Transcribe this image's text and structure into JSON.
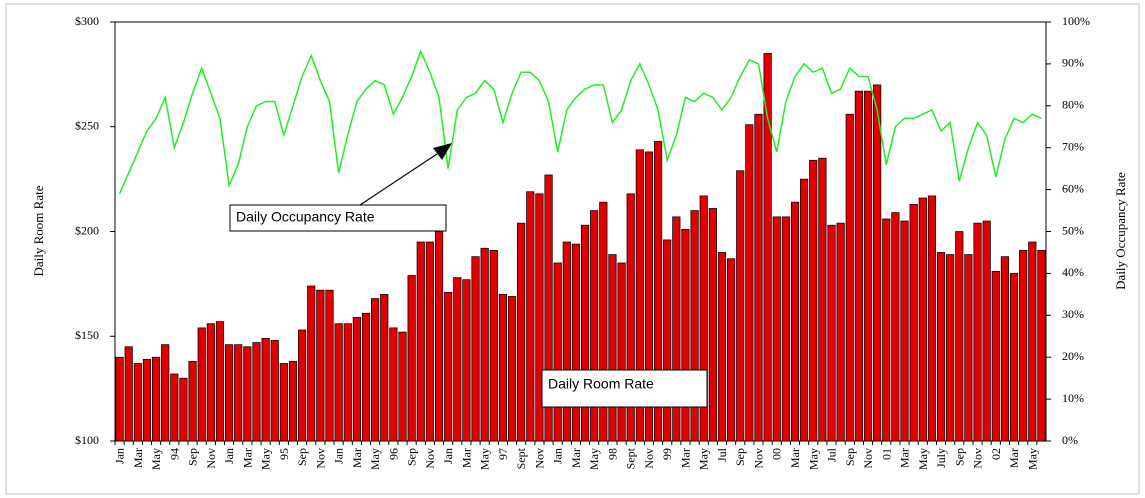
{
  "chart_data": {
    "type": "bar",
    "categories": [
      "Jan",
      null,
      "Mar",
      null,
      "May",
      null,
      "94",
      null,
      "Sep",
      null,
      "Nov",
      null,
      "Jan",
      null,
      "Mar",
      null,
      "May",
      null,
      "95",
      null,
      "Sep",
      null,
      "Nov",
      null,
      "Jan",
      null,
      "Mar",
      null,
      "May",
      null,
      "96",
      null,
      "Sep",
      null,
      "Nov",
      null,
      "Jan",
      null,
      "Mar",
      null,
      "May",
      null,
      "97",
      null,
      "Sept",
      null,
      "Nov",
      null,
      "Jan",
      null,
      "Mar",
      null,
      "May",
      null,
      "98",
      null,
      "Sept",
      null,
      "Nov",
      null,
      "99",
      null,
      "Mar",
      null,
      "May",
      null,
      "Jul",
      null,
      "Sep",
      null,
      "Nov",
      null,
      "00",
      null,
      "Mar",
      null,
      "May",
      null,
      "Jul",
      null,
      "Sep",
      null,
      "Nov",
      null,
      "01",
      null,
      "Mar",
      null,
      "May",
      null,
      "July",
      null,
      "Sep",
      null,
      "Nov",
      null,
      "02",
      null,
      "Mar",
      null,
      "May",
      null
    ],
    "series": [
      {
        "name": "Daily Room Rate",
        "type": "bar",
        "color": "#e00000",
        "values": [
          140,
          145,
          137,
          139,
          140,
          146,
          132,
          130,
          138,
          154,
          156,
          157,
          146,
          146,
          145,
          147,
          149,
          148,
          137,
          138,
          153,
          174,
          172,
          172,
          156,
          156,
          159,
          161,
          168,
          170,
          154,
          152,
          179,
          195,
          195,
          200,
          171,
          178,
          177,
          188,
          192,
          191,
          170,
          169,
          204,
          219,
          218,
          227,
          185,
          195,
          194,
          203,
          210,
          214,
          189,
          185,
          218,
          239,
          238,
          243,
          196,
          207,
          201,
          210,
          217,
          211,
          190,
          187,
          229,
          251,
          256,
          285,
          207,
          207,
          214,
          225,
          234,
          235,
          203,
          204,
          256,
          267,
          267,
          270,
          206,
          209,
          205,
          213,
          216,
          217,
          190,
          189,
          200,
          189,
          204,
          205,
          181,
          188,
          180,
          191,
          195,
          191
        ]
      },
      {
        "name": "Daily Occupancy Rate",
        "type": "line",
        "color": "#22ee22",
        "axis": "y2",
        "values": [
          59,
          64,
          69,
          74,
          77,
          82,
          70,
          76,
          83,
          89,
          83,
          77,
          61,
          66,
          75,
          80,
          81,
          81,
          73,
          80,
          87,
          92,
          86,
          81,
          64,
          73,
          81,
          84,
          86,
          85,
          78,
          82,
          87,
          93,
          88,
          82,
          65,
          79,
          82,
          83,
          86,
          84,
          76,
          83,
          88,
          88,
          86,
          81,
          69,
          79,
          82,
          84,
          85,
          85,
          76,
          79,
          86,
          90,
          85,
          79,
          67,
          73,
          82,
          81,
          83,
          82,
          79,
          82,
          87,
          91,
          90,
          77,
          69,
          81,
          87,
          90,
          88,
          89,
          83,
          84,
          89,
          87,
          87,
          79,
          66,
          75,
          77,
          77,
          78,
          79,
          74,
          76,
          62,
          70,
          76,
          73,
          63,
          72,
          77,
          76,
          78,
          77
        ]
      }
    ],
    "ylabel": "Daily Room Rate",
    "y2label": "Daily Occupancy Rate",
    "ylim": [
      100,
      300
    ],
    "yticks": [
      {
        "value": 100,
        "label": "$100"
      },
      {
        "value": 150,
        "label": "$150"
      },
      {
        "value": 200,
        "label": "$200"
      },
      {
        "value": 250,
        "label": "$250"
      },
      {
        "value": 300,
        "label": "$300"
      }
    ],
    "y2lim": [
      0,
      100
    ],
    "y2ticks": [
      {
        "value": 0,
        "label": "0%"
      },
      {
        "value": 10,
        "label": "10%"
      },
      {
        "value": 20,
        "label": "20%"
      },
      {
        "value": 30,
        "label": "30%"
      },
      {
        "value": 40,
        "label": "40%"
      },
      {
        "value": 50,
        "label": "50%"
      },
      {
        "value": 60,
        "label": "60%"
      },
      {
        "value": 70,
        "label": "70%"
      },
      {
        "value": 80,
        "label": "80%"
      },
      {
        "value": 90,
        "label": "90%"
      },
      {
        "value": 100,
        "label": "100%"
      }
    ]
  }
}
